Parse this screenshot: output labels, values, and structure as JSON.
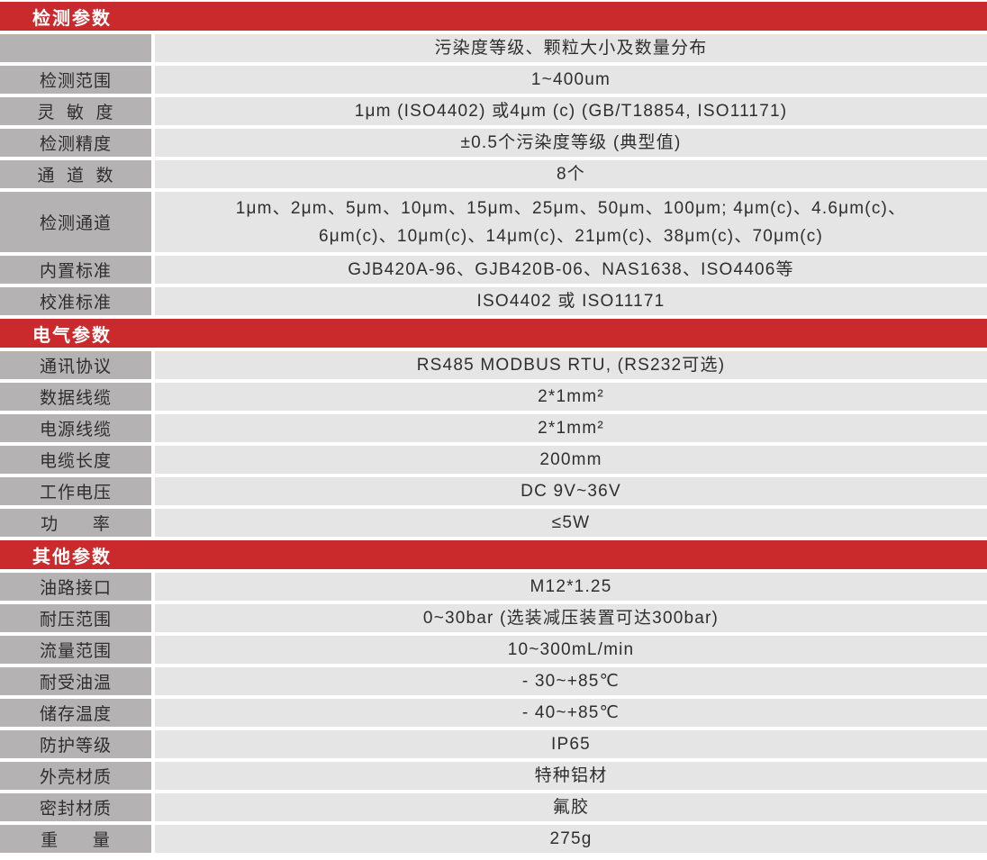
{
  "colors": {
    "header_bg": "#cb2a2d",
    "header_text": "#ffffff",
    "label_bg": "#b4b2b3",
    "value_bg": "#e6e5e6",
    "text": "#2e2e2e"
  },
  "sections": [
    {
      "title": "检测参数",
      "rows": [
        {
          "label": "",
          "value": "污染度等级、颗粒大小及数量分布"
        },
        {
          "label": "检测范围",
          "value": "1~400um"
        },
        {
          "label": "灵  敏  度",
          "value": "1μm (ISO4402) 或4μm (c) (GB/T18854, ISO11171)"
        },
        {
          "label": "检测精度",
          "value": "±0.5个污染度等级 (典型值)"
        },
        {
          "label": "通  道  数",
          "value": "8个"
        },
        {
          "label": "检测通道",
          "value": "1μm、2μm、5μm、10μm、15μm、25μm、50μm、100μm; 4μm(c)、4.6μm(c)、\n6μm(c)、10μm(c)、14μm(c)、21μm(c)、38μm(c)、70μm(c)"
        },
        {
          "label": "内置标准",
          "value": "GJB420A-96、GJB420B-06、NAS1638、ISO4406等"
        },
        {
          "label": "校准标准",
          "value": "ISO4402 或 ISO11171"
        }
      ]
    },
    {
      "title": "电气参数",
      "rows": [
        {
          "label": "通讯协议",
          "value": "RS485 MODBUS RTU, (RS232可选)"
        },
        {
          "label": "数据线缆",
          "value": "2*1mm²"
        },
        {
          "label": "电源线缆",
          "value": "2*1mm²"
        },
        {
          "label": "电缆长度",
          "value": "200mm"
        },
        {
          "label": "工作电压",
          "value": "DC 9V~36V"
        },
        {
          "label": "功      率",
          "value": "≤5W"
        }
      ]
    },
    {
      "title": "其他参数",
      "rows": [
        {
          "label": "油路接口",
          "value": "M12*1.25"
        },
        {
          "label": "耐压范围",
          "value": "0~30bar (选装减压装置可达300bar)"
        },
        {
          "label": "流量范围",
          "value": "10~300mL/min"
        },
        {
          "label": "耐受油温",
          "value": "- 30~+85℃"
        },
        {
          "label": "储存温度",
          "value": "- 40~+85℃"
        },
        {
          "label": "防护等级",
          "value": "IP65"
        },
        {
          "label": "外壳材质",
          "value": "特种铝材"
        },
        {
          "label": "密封材质",
          "value": "氟胶"
        },
        {
          "label": "重      量",
          "value": "275g"
        }
      ]
    }
  ]
}
